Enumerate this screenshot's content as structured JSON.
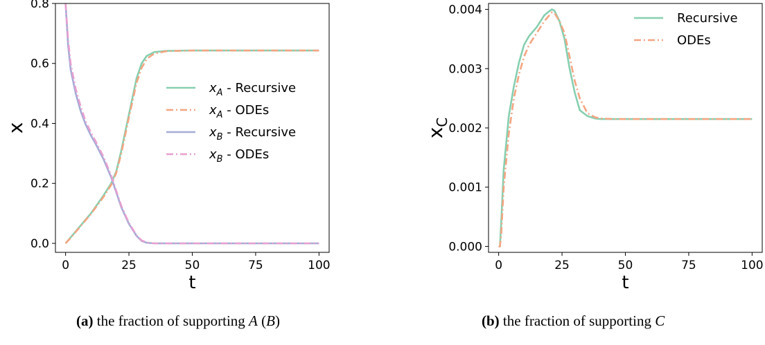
{
  "colors": {
    "recursive_a": "#86cfb0",
    "odes_a": "#f4a582",
    "recursive_b": "#a3abd6",
    "odes_b": "#e8a0d0"
  },
  "captions": [
    {
      "label": "(a)",
      "text_before": "the fraction of supporting ",
      "var1": "A",
      "mid": " (",
      "var2": "B",
      "after": ")"
    },
    {
      "label": "(b)",
      "text_before": "the fraction of supporting ",
      "var1": "C",
      "mid": "",
      "var2": "",
      "after": ""
    }
  ],
  "chart_data": [
    {
      "type": "line",
      "xlabel": "t",
      "ylabel": "x",
      "xlim": [
        -4,
        104
      ],
      "ylim": [
        -0.03,
        0.8
      ],
      "xticks": [
        "0",
        "25",
        "50",
        "75",
        "100"
      ],
      "yticks": [
        "0.0",
        "0.2",
        "0.4",
        "0.6",
        "0.8"
      ],
      "legend_position": "center-right",
      "series": [
        {
          "name": "x_A - Recursive",
          "sub": "A",
          "label_rest": " - Recursive",
          "style": "solid",
          "color_key": "recursive_a",
          "x": [
            0,
            2,
            5,
            10,
            15,
            18,
            20,
            22,
            25,
            28,
            30,
            32,
            35,
            40,
            50,
            75,
            100
          ],
          "y": [
            0.0,
            0.02,
            0.05,
            0.1,
            0.16,
            0.2,
            0.24,
            0.31,
            0.43,
            0.55,
            0.6,
            0.625,
            0.638,
            0.642,
            0.643,
            0.643,
            0.643
          ]
        },
        {
          "name": "x_A - ODEs",
          "sub": "A",
          "label_rest": " - ODEs",
          "style": "dashdot",
          "color_key": "odes_a",
          "x": [
            0,
            2,
            5,
            10,
            15,
            18,
            20,
            22,
            25,
            28,
            30,
            32,
            35,
            40,
            50,
            75,
            100
          ],
          "y": [
            0.0,
            0.018,
            0.048,
            0.098,
            0.155,
            0.195,
            0.235,
            0.3,
            0.42,
            0.535,
            0.585,
            0.615,
            0.633,
            0.641,
            0.643,
            0.643,
            0.643
          ]
        },
        {
          "name": "x_B - Recursive",
          "sub": "B",
          "label_rest": " - Recursive",
          "style": "solid",
          "color_key": "recursive_b",
          "x": [
            0,
            1,
            2,
            4,
            6,
            8,
            10,
            12,
            15,
            18,
            20,
            22,
            25,
            28,
            30,
            32,
            35,
            40,
            50,
            75,
            100
          ],
          "y": [
            0.8,
            0.66,
            0.58,
            0.5,
            0.44,
            0.395,
            0.36,
            0.33,
            0.28,
            0.22,
            0.17,
            0.12,
            0.065,
            0.025,
            0.008,
            0.002,
            0.0,
            0.0,
            0.0,
            0.0,
            0.0
          ]
        },
        {
          "name": "x_B - ODEs",
          "sub": "B",
          "label_rest": " - ODEs",
          "style": "dashdot",
          "color_key": "odes_b",
          "x": [
            0,
            1,
            2,
            4,
            6,
            8,
            10,
            12,
            15,
            18,
            20,
            22,
            25,
            28,
            30,
            32,
            35,
            40,
            50,
            75,
            100
          ],
          "y": [
            0.8,
            0.68,
            0.6,
            0.515,
            0.455,
            0.405,
            0.37,
            0.338,
            0.288,
            0.226,
            0.175,
            0.125,
            0.068,
            0.027,
            0.01,
            0.003,
            0.0,
            0.0,
            0.0,
            0.0,
            0.0
          ]
        }
      ]
    },
    {
      "type": "line",
      "xlabel": "t",
      "ylabel": "x",
      "ylabel_sub": "C",
      "xlim": [
        -4,
        104
      ],
      "ylim": [
        -0.0001,
        0.0041
      ],
      "xticks": [
        "0",
        "25",
        "50",
        "75",
        "100"
      ],
      "yticks": [
        "0.000",
        "0.001",
        "0.002",
        "0.003",
        "0.004"
      ],
      "legend_position": "top-right",
      "series": [
        {
          "name": "Recursive",
          "style": "solid",
          "color_key": "recursive_a",
          "x": [
            0,
            0.5,
            1,
            2,
            4,
            6,
            8,
            10,
            12,
            15,
            18,
            20,
            21,
            22,
            24,
            26,
            28,
            30,
            32,
            35,
            38,
            40,
            45,
            50,
            75,
            100
          ],
          "y": [
            0.0,
            0.0,
            0.0004,
            0.0013,
            0.0022,
            0.0027,
            0.0031,
            0.0034,
            0.00355,
            0.0037,
            0.0039,
            0.00397,
            0.004,
            0.00398,
            0.0038,
            0.0035,
            0.003,
            0.0026,
            0.0023,
            0.0022,
            0.00216,
            0.00215,
            0.00215,
            0.00215,
            0.00215,
            0.00215
          ]
        },
        {
          "name": "ODEs",
          "style": "dashdot",
          "color_key": "odes_a",
          "x": [
            0,
            0.5,
            1,
            2,
            4,
            6,
            8,
            10,
            12,
            15,
            18,
            20,
            21,
            22,
            24,
            26,
            28,
            30,
            32,
            35,
            38,
            40,
            45,
            50,
            75,
            100
          ],
          "y": [
            0.0,
            0.0,
            0.0002,
            0.001,
            0.0019,
            0.0025,
            0.0029,
            0.0032,
            0.0034,
            0.0036,
            0.0038,
            0.0039,
            0.00395,
            0.00394,
            0.0038,
            0.0036,
            0.0032,
            0.0028,
            0.0025,
            0.00225,
            0.00218,
            0.00216,
            0.00215,
            0.00215,
            0.00215,
            0.00215
          ]
        }
      ]
    }
  ]
}
